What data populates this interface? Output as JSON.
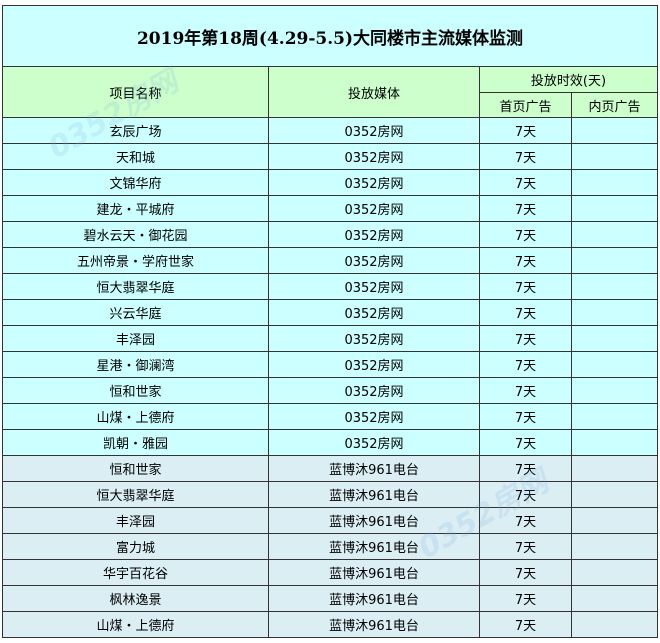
{
  "title": "2019年第18周(4.29-5.5)大同楼市主流媒体监测",
  "headers": {
    "project": "项目名称",
    "media": "投放媒体",
    "duration": "投放时效(天)",
    "homepage": "首页广告",
    "inner": "内页广告"
  },
  "watermark": "0352房网",
  "colors": {
    "title_bg": "#ccffff",
    "header_bg": "#ccffcc",
    "row_web": "#ccffff",
    "row_radio": "#daeef3"
  },
  "rows": [
    {
      "project": "玄辰广场",
      "media": "0352房网",
      "home": "7天",
      "inner": ""
    },
    {
      "project": "天和城",
      "media": "0352房网",
      "home": "7天",
      "inner": ""
    },
    {
      "project": "文锦华府",
      "media": "0352房网",
      "home": "7天",
      "inner": ""
    },
    {
      "project": "建龙・平城府",
      "media": "0352房网",
      "home": "7天",
      "inner": ""
    },
    {
      "project": "碧水云天・御花园",
      "media": "0352房网",
      "home": "7天",
      "inner": ""
    },
    {
      "project": "五州帝景・学府世家",
      "media": "0352房网",
      "home": "7天",
      "inner": ""
    },
    {
      "project": "恒大翡翠华庭",
      "media": "0352房网",
      "home": "7天",
      "inner": ""
    },
    {
      "project": "兴云华庭",
      "media": "0352房网",
      "home": "7天",
      "inner": ""
    },
    {
      "project": "丰泽园",
      "media": "0352房网",
      "home": "7天",
      "inner": ""
    },
    {
      "project": "星港・御澜湾",
      "media": "0352房网",
      "home": "7天",
      "inner": ""
    },
    {
      "project": "恒和世家",
      "media": "0352房网",
      "home": "7天",
      "inner": ""
    },
    {
      "project": "山煤・上德府",
      "media": "0352房网",
      "home": "7天",
      "inner": ""
    },
    {
      "project": "凯朝・雅园",
      "media": "0352房网",
      "home": "7天",
      "inner": ""
    },
    {
      "project": "恒和世家",
      "media": "蓝博沐961电台",
      "home": "7天",
      "inner": ""
    },
    {
      "project": "恒大翡翠华庭",
      "media": "蓝博沐961电台",
      "home": "7天",
      "inner": ""
    },
    {
      "project": "丰泽园",
      "media": "蓝博沐961电台",
      "home": "7天",
      "inner": ""
    },
    {
      "project": "富力城",
      "media": "蓝博沐961电台",
      "home": "7天",
      "inner": ""
    },
    {
      "project": "华宇百花谷",
      "media": "蓝博沐961电台",
      "home": "7天",
      "inner": ""
    },
    {
      "project": "枫林逸景",
      "media": "蓝博沐961电台",
      "home": "7天",
      "inner": ""
    },
    {
      "project": "山煤・上德府",
      "media": "蓝博沐961电台",
      "home": "7天",
      "inner": ""
    }
  ]
}
